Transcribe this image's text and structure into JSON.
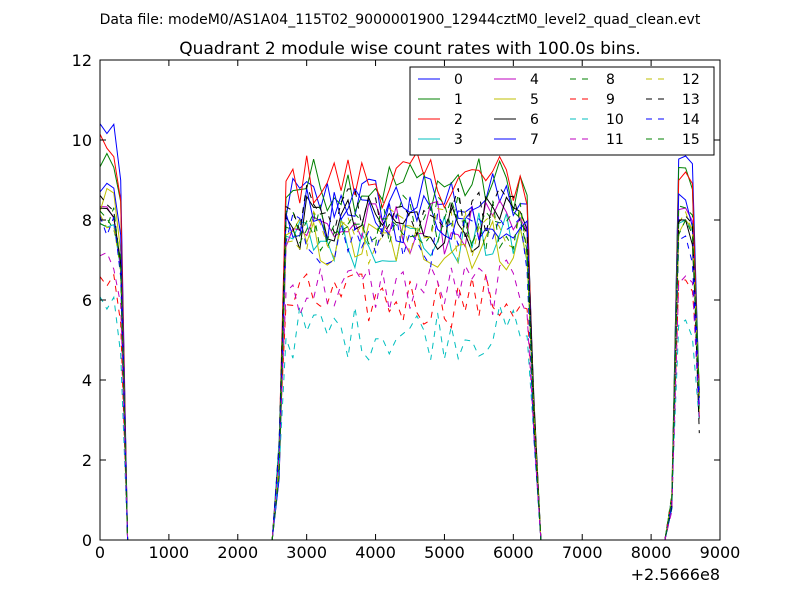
{
  "suptitle": "Data file: modeM0/AS1A04_115T02_9000001900_12944cztM0_level2_quad_clean.evt",
  "chart_data": {
    "type": "line",
    "title": "Quadrant 2 module wise count rates with 100.0s bins.",
    "xlabel": "",
    "ylabel": "",
    "x_offset_label": "+2.5666e8",
    "xlim": [
      0,
      9000
    ],
    "ylim": [
      0,
      12
    ],
    "xticks": [
      0,
      1000,
      2000,
      3000,
      4000,
      5000,
      6000,
      7000,
      8000,
      9000
    ],
    "yticks": [
      0,
      2,
      4,
      6,
      8,
      10,
      12
    ],
    "grid": false,
    "legend_placement": "top-right",
    "legend_columns": 4,
    "series": [
      {
        "name": "0",
        "color": "#0000ff",
        "dash": "solid",
        "rough_level": 8.5,
        "seg1_start": 10.3,
        "seg3_peak": 9.6
      },
      {
        "name": "1",
        "color": "#008000",
        "dash": "solid",
        "rough_level": 8.9,
        "seg1_start": 9.6,
        "seg3_peak": 9.3
      },
      {
        "name": "2",
        "color": "#ff0000",
        "dash": "solid",
        "rough_level": 9.0,
        "seg1_start": 9.8,
        "seg3_peak": 9.2
      },
      {
        "name": "3",
        "color": "#00bfbf",
        "dash": "solid",
        "rough_level": 7.5,
        "seg1_start": 8.0,
        "seg3_peak": 8.0
      },
      {
        "name": "4",
        "color": "#bf00bf",
        "dash": "solid",
        "rough_level": 7.8,
        "seg1_start": 8.2,
        "seg3_peak": 8.3
      },
      {
        "name": "5",
        "color": "#bfbf00",
        "dash": "solid",
        "rough_level": 7.4,
        "seg1_start": 8.5,
        "seg3_peak": 8.0
      },
      {
        "name": "6",
        "color": "#000000",
        "dash": "solid",
        "rough_level": 7.9,
        "seg1_start": 8.2,
        "seg3_peak": 8.0
      },
      {
        "name": "7",
        "color": "#0000ff",
        "dash": "solid",
        "rough_level": 8.1,
        "seg1_start": 8.8,
        "seg3_peak": 8.5
      },
      {
        "name": "8",
        "color": "#008000",
        "dash": "dashed",
        "rough_level": 8.0,
        "seg1_start": 8.1,
        "seg3_peak": 8.3
      },
      {
        "name": "9",
        "color": "#ff0000",
        "dash": "dashed",
        "rough_level": 6.0,
        "seg1_start": 6.6,
        "seg3_peak": 6.5
      },
      {
        "name": "10",
        "color": "#00bfbf",
        "dash": "dashed",
        "rough_level": 5.2,
        "seg1_start": 5.9,
        "seg3_peak": 5.5
      },
      {
        "name": "11",
        "color": "#bf00bf",
        "dash": "dashed",
        "rough_level": 6.3,
        "seg1_start": 6.9,
        "seg3_peak": 6.6
      },
      {
        "name": "12",
        "color": "#bfbf00",
        "dash": "dashed",
        "rough_level": 7.6,
        "seg1_start": 8.0,
        "seg3_peak": 8.2
      },
      {
        "name": "13",
        "color": "#000000",
        "dash": "dashed",
        "rough_level": 8.2,
        "seg1_start": 8.3,
        "seg3_peak": 8.1
      },
      {
        "name": "14",
        "color": "#0000ff",
        "dash": "dashed",
        "rough_level": 7.5,
        "seg1_start": 7.8,
        "seg3_peak": 7.6
      },
      {
        "name": "15",
        "color": "#008000",
        "dash": "dashed",
        "rough_level": 7.9,
        "seg1_start": 8.1,
        "seg3_peak": 8.0
      }
    ]
  }
}
